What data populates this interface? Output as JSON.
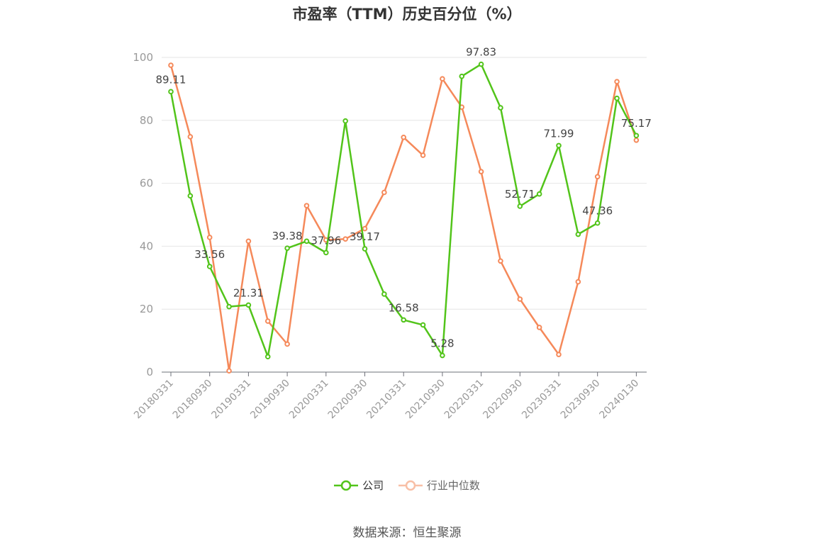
{
  "chart_data": {
    "type": "line",
    "title": "市盈率（TTM）历史百分位（%）",
    "source": "数据来源：恒生聚源",
    "ylim": [
      0,
      100
    ],
    "yticks": [
      "0",
      "20",
      "40",
      "60",
      "80",
      "100"
    ],
    "x": [
      "20180331",
      "20180630",
      "20180930",
      "20181231",
      "20190331",
      "20190630",
      "20190930",
      "20191231",
      "20200331",
      "20200630",
      "20200930",
      "20201231",
      "20210331",
      "20210630",
      "20210930",
      "20211231",
      "20220331",
      "20220630",
      "20220930",
      "20221231",
      "20230331",
      "20230630",
      "20230930",
      "20231231",
      "20240130"
    ],
    "xtick_labels": [
      "20180331",
      "20180930",
      "20190331",
      "20190930",
      "20200331",
      "20200930",
      "20210331",
      "20210930",
      "20220331",
      "20220930",
      "20230331",
      "20230930",
      "20240130"
    ],
    "grid": true,
    "legend_position": "bottom",
    "series": [
      {
        "name": "公司",
        "color": "#52c41a",
        "values": [
          89.11,
          56.0,
          33.56,
          20.8,
          21.31,
          4.9,
          39.38,
          41.6,
          37.96,
          79.8,
          39.17,
          24.8,
          16.58,
          15.0,
          5.28,
          94.0,
          97.83,
          84.0,
          52.71,
          56.6,
          71.99,
          43.8,
          47.36,
          87.0,
          75.17
        ],
        "labels": [
          "89.11",
          "",
          "33.56",
          "",
          "21.31",
          "",
          "39.38",
          "",
          "37.96",
          "",
          "39.17",
          "",
          "16.58",
          "",
          "5.28",
          "",
          "97.83",
          "",
          "52.71",
          "",
          "71.99",
          "",
          "47.36",
          "",
          "75.17"
        ]
      },
      {
        "name": "行业中位数",
        "color": "#f5895a",
        "values": [
          97.5,
          74.8,
          42.8,
          0.4,
          41.6,
          16.2,
          8.9,
          52.9,
          42.0,
          42.3,
          45.6,
          57.1,
          74.6,
          68.9,
          93.2,
          84.2,
          63.7,
          35.3,
          23.2,
          14.2,
          5.6,
          28.7,
          62.1,
          92.3,
          73.7
        ]
      }
    ]
  }
}
